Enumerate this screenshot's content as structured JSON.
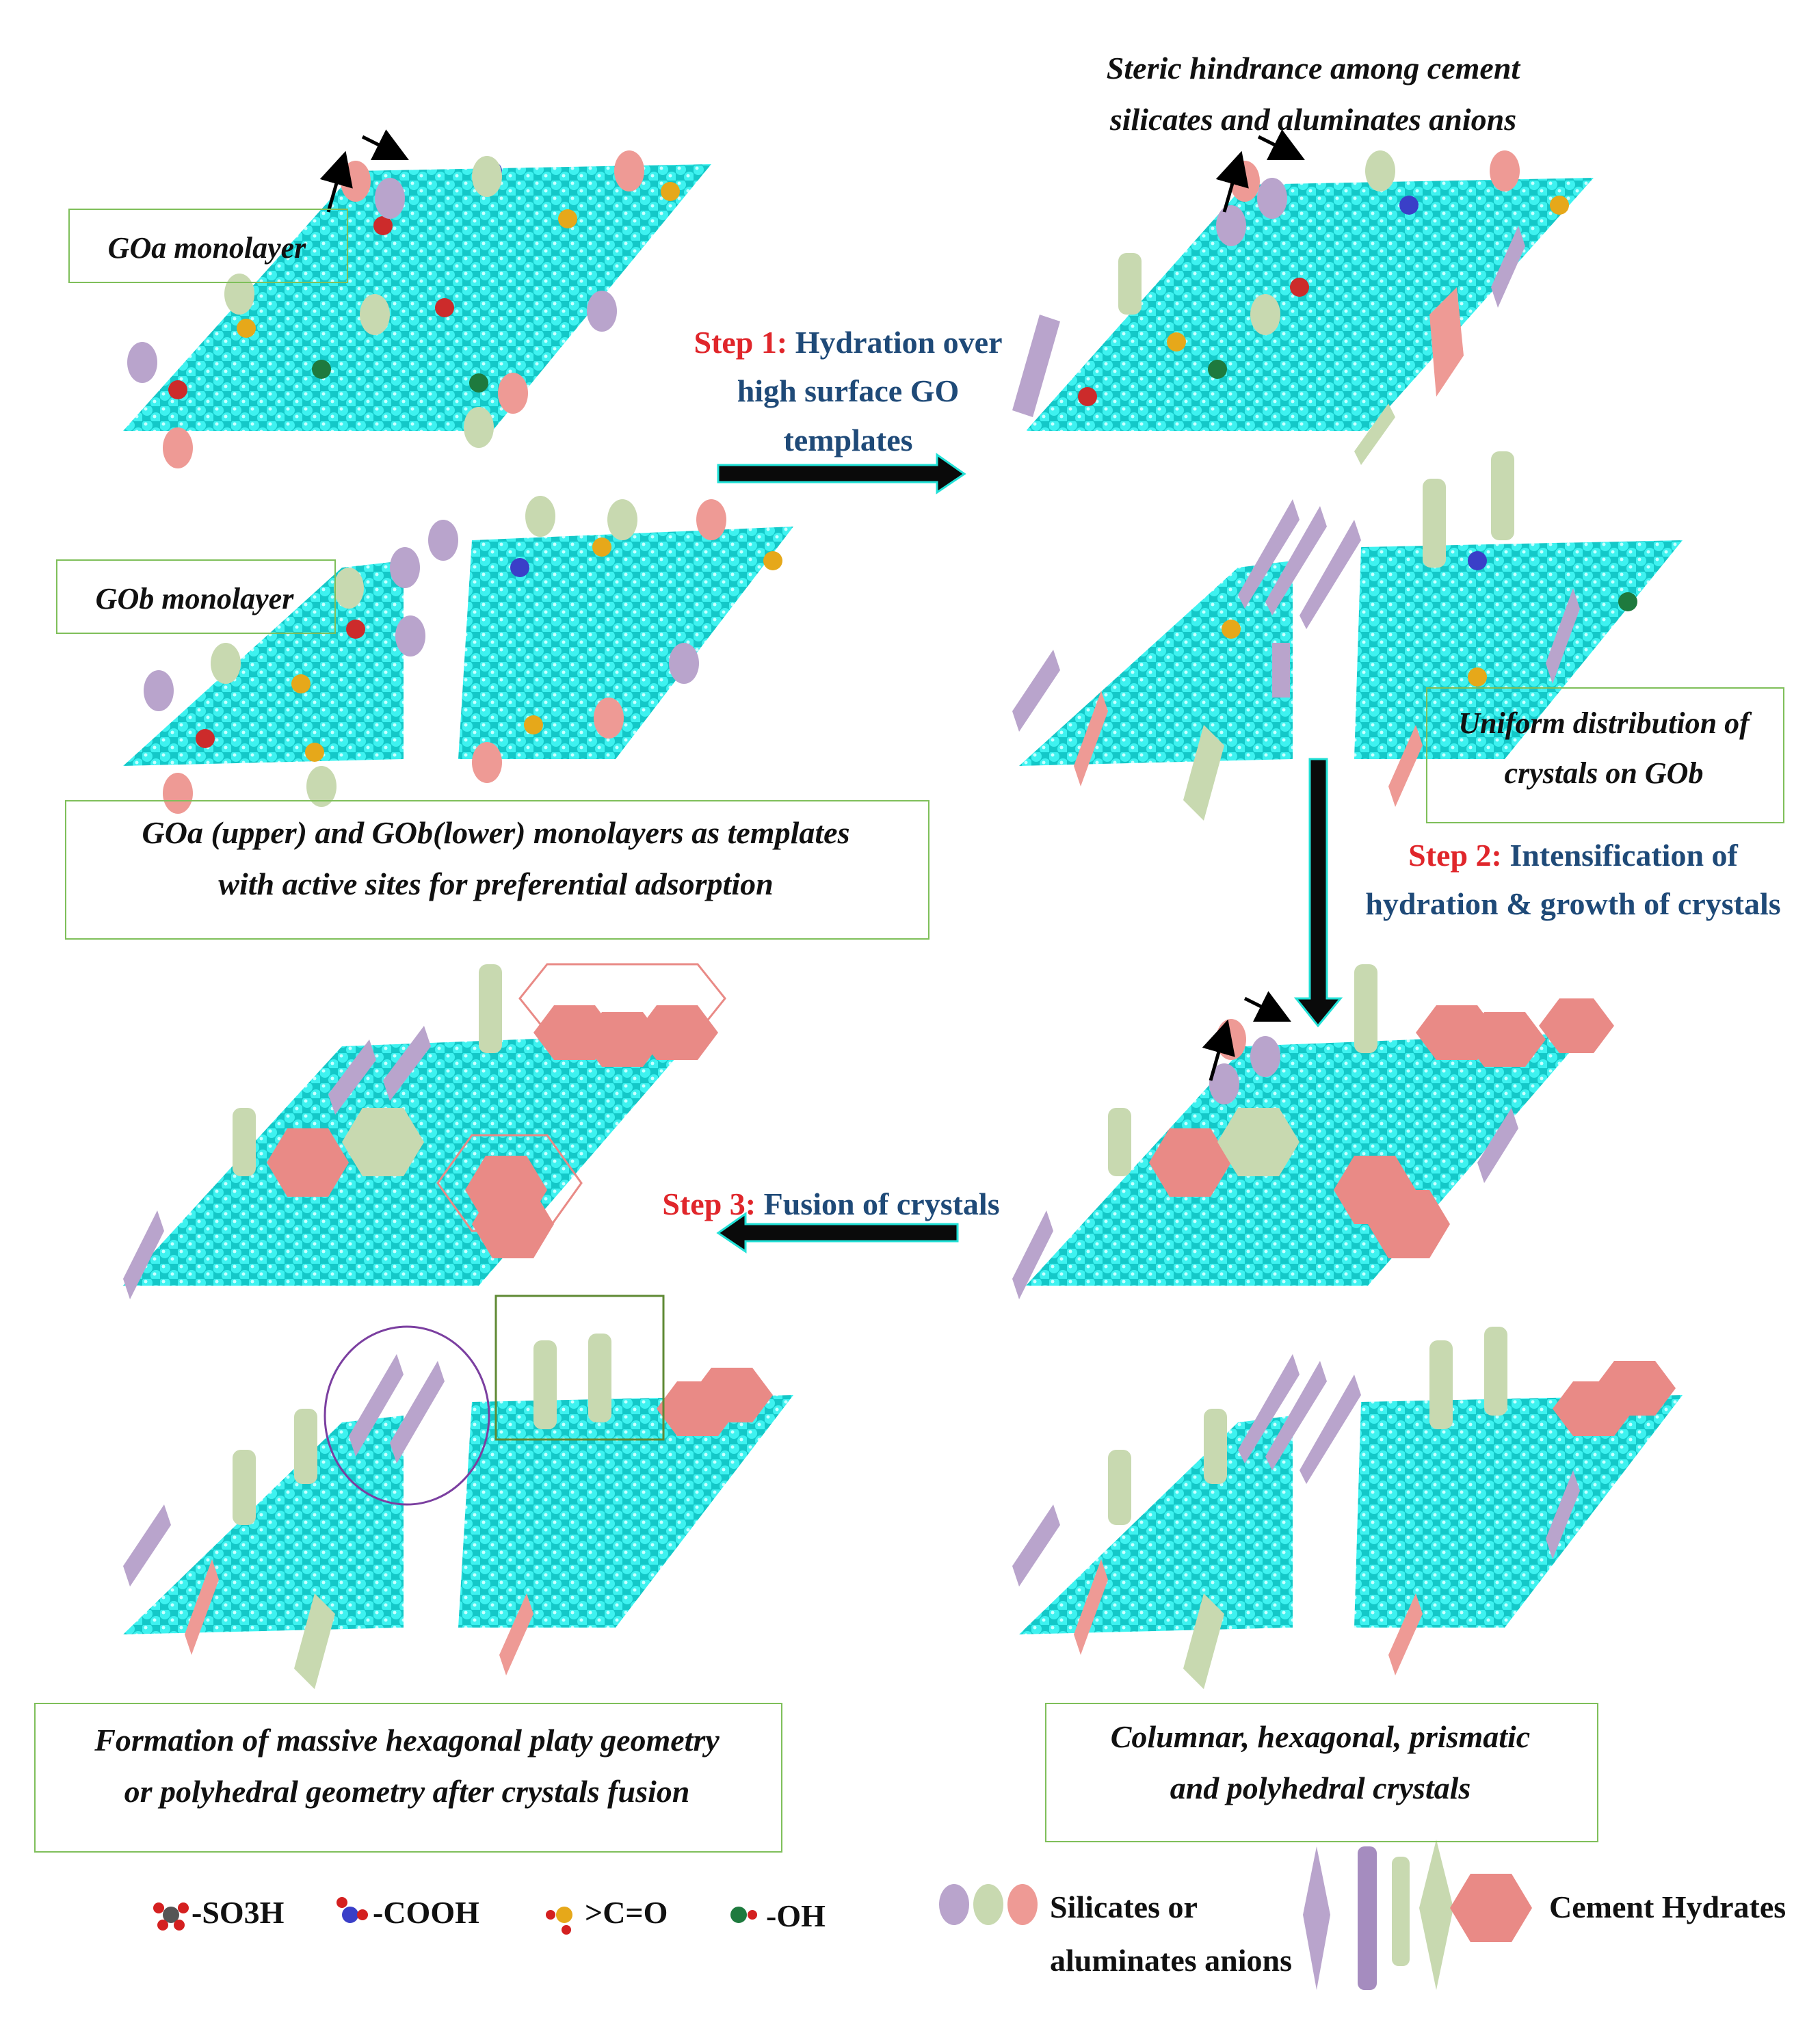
{
  "labels": {
    "goa_monolayer": "GOa monolayer",
    "gob_monolayer": "GOb monolayer",
    "templates_line1": "GOa (upper) and GOb(lower) monolayers as templates",
    "templates_line2": "with active sites for preferential adsorption",
    "steric_line1": "Steric hindrance among cement",
    "steric_line2": "silicates and aluminates anions",
    "uniform_line1": "Uniform distribution of",
    "uniform_line2": "crystals on GOb",
    "columnar_line1": "Columnar, hexagonal, prismatic",
    "columnar_line2": "and polyhedral crystals",
    "formation_line1": "Formation of massive hexagonal platy geometry",
    "formation_line2": "or polyhedral geometry after crystals fusion"
  },
  "steps": {
    "step1_num": "Step 1:",
    "step1_text_a": "Hydration over",
    "step1_text_b": "high surface GO",
    "step1_text_c": "templates",
    "step2_num": "Step 2:",
    "step2_text_a": "Intensification of",
    "step2_text_b": "hydration & growth of crystals",
    "step3_num": "Step 3:",
    "step3_text": "Fusion of crystals"
  },
  "legend": {
    "so3h": "-SO3H",
    "cooh": "-COOH",
    "co": ">C=O",
    "oh": "-OH",
    "anions_line1": "Silicates or",
    "anions_line2": "aluminates anions",
    "hydrates": "Cement Hydrates"
  },
  "colors": {
    "graphene": "#2ee0df",
    "silicate_purple": "#b9a4cc",
    "silicate_green": "#c8d9b0",
    "silicate_pink": "#ee9a95",
    "hex_pink": "#e98a86",
    "step_red": "#e0262b",
    "step_text": "#1f4a78",
    "box_green": "#7fbf5a"
  }
}
